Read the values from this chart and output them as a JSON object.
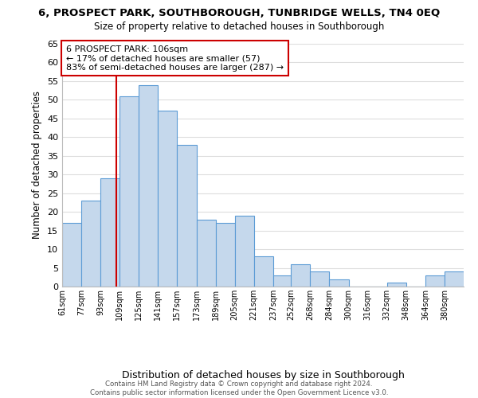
{
  "title": "6, PROSPECT PARK, SOUTHBOROUGH, TUNBRIDGE WELLS, TN4 0EQ",
  "subtitle": "Size of property relative to detached houses in Southborough",
  "xlabel": "Distribution of detached houses by size in Southborough",
  "ylabel": "Number of detached properties",
  "bin_labels": [
    "61sqm",
    "77sqm",
    "93sqm",
    "109sqm",
    "125sqm",
    "141sqm",
    "157sqm",
    "173sqm",
    "189sqm",
    "205sqm",
    "221sqm",
    "237sqm",
    "252sqm",
    "268sqm",
    "284sqm",
    "300sqm",
    "316sqm",
    "332sqm",
    "348sqm",
    "364sqm",
    "380sqm"
  ],
  "bin_edges": [
    61,
    77,
    93,
    109,
    125,
    141,
    157,
    173,
    189,
    205,
    221,
    237,
    252,
    268,
    284,
    300,
    316,
    332,
    348,
    364,
    380
  ],
  "bar_heights": [
    17,
    23,
    29,
    51,
    54,
    47,
    38,
    18,
    17,
    19,
    8,
    3,
    6,
    4,
    2,
    0,
    0,
    1,
    0,
    3,
    4
  ],
  "bar_color": "#c5d8ec",
  "bar_edge_color": "#5b9bd5",
  "vline_x": 106,
  "vline_color": "#cc0000",
  "ylim": [
    0,
    65
  ],
  "yticks": [
    0,
    5,
    10,
    15,
    20,
    25,
    30,
    35,
    40,
    45,
    50,
    55,
    60,
    65
  ],
  "annotation_title": "6 PROSPECT PARK: 106sqm",
  "annotation_line1": "← 17% of detached houses are smaller (57)",
  "annotation_line2": "83% of semi-detached houses are larger (287) →",
  "annotation_box_color": "#ffffff",
  "annotation_box_edge_color": "#cc0000",
  "footer_line1": "Contains HM Land Registry data © Crown copyright and database right 2024.",
  "footer_line2": "Contains public sector information licensed under the Open Government Licence v3.0.",
  "background_color": "#ffffff",
  "grid_color": "#dddddd"
}
